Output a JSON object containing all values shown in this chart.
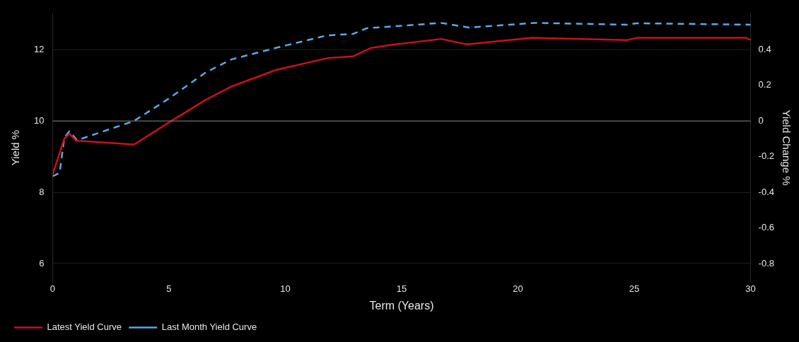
{
  "chart_data": {
    "type": "line",
    "xlabel": "Term (Years)",
    "ylabel": "Yield %",
    "y2label": "Yield Change %",
    "xlim": [
      0,
      30
    ],
    "xticks": [
      0,
      5,
      10,
      15,
      20,
      25,
      30
    ],
    "ylim": [
      5.5,
      13
    ],
    "yticks": [
      6,
      8,
      10,
      12
    ],
    "y2lim": [
      -0.9,
      0.6
    ],
    "y2ticks": [
      -0.8,
      -0.6,
      -0.4,
      -0.2,
      0,
      0.2,
      0.4
    ],
    "grid": "y",
    "legend": "bottom left",
    "marker": "none",
    "ref_lines": [
      {
        "axis": "y2",
        "value": 0,
        "color": "#808080"
      }
    ],
    "series": [
      {
        "name": "Latest Yield Curve",
        "color": "#c8101e",
        "line_style": "solid",
        "x": [
          0,
          0.5,
          0.72,
          1.0,
          3.5,
          5.1,
          6.6,
          7.7,
          9.6,
          11.8,
          12.9,
          13.7,
          14.6,
          16.7,
          17.8,
          20.6,
          24.7,
          25.1,
          29.8,
          30
        ],
        "values": [
          8.5,
          9.5,
          9.64,
          9.45,
          9.34,
          10.0,
          10.6,
          10.97,
          11.43,
          11.76,
          11.81,
          12.05,
          12.14,
          12.3,
          12.15,
          12.33,
          12.27,
          12.33,
          12.33,
          12.27
        ]
      },
      {
        "name": "Last Month Yield Curve",
        "color": "#5aa9e6",
        "line_style": "dashed",
        "x": [
          0,
          0.3,
          0.5,
          0.72,
          1.05,
          3.5,
          5.0,
          6.6,
          7.7,
          9.6,
          11.8,
          12.9,
          13.5,
          14.6,
          16.7,
          17.9,
          20.7,
          24.7,
          25.1,
          30
        ],
        "values": [
          8.45,
          8.54,
          9.53,
          9.71,
          9.46,
          10.0,
          10.63,
          11.37,
          11.73,
          12.05,
          12.4,
          12.44,
          12.6,
          12.65,
          12.75,
          12.62,
          12.75,
          12.7,
          12.74,
          12.7
        ]
      }
    ]
  }
}
